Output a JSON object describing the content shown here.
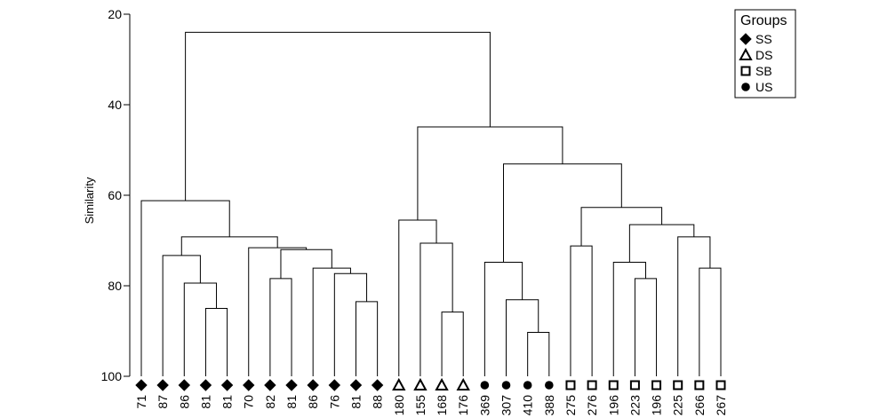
{
  "chart_data": {
    "type": "dendrogram",
    "ylabel": "Similarity",
    "ylim": [
      20,
      100
    ],
    "yticks": [
      20,
      40,
      60,
      80,
      100
    ],
    "leaves": [
      {
        "label": "71",
        "group": "SS"
      },
      {
        "label": "87",
        "group": "SS"
      },
      {
        "label": "86",
        "group": "SS"
      },
      {
        "label": "81",
        "group": "SS"
      },
      {
        "label": "81",
        "group": "SS"
      },
      {
        "label": "70",
        "group": "SS"
      },
      {
        "label": "82",
        "group": "SS"
      },
      {
        "label": "81",
        "group": "SS"
      },
      {
        "label": "86",
        "group": "SS"
      },
      {
        "label": "76",
        "group": "SS"
      },
      {
        "label": "81",
        "group": "SS"
      },
      {
        "label": "88",
        "group": "SS"
      },
      {
        "label": "180",
        "group": "DS"
      },
      {
        "label": "155",
        "group": "DS"
      },
      {
        "label": "168",
        "group": "DS"
      },
      {
        "label": "176",
        "group": "DS"
      },
      {
        "label": "369",
        "group": "US"
      },
      {
        "label": "307",
        "group": "US"
      },
      {
        "label": "410",
        "group": "US"
      },
      {
        "label": "388",
        "group": "US"
      },
      {
        "label": "275",
        "group": "SB"
      },
      {
        "label": "276",
        "group": "SB"
      },
      {
        "label": "196",
        "group": "SB"
      },
      {
        "label": "223",
        "group": "SB"
      },
      {
        "label": "196",
        "group": "SB"
      },
      {
        "label": "225",
        "group": "SB"
      },
      {
        "label": "266",
        "group": "SB"
      },
      {
        "label": "267",
        "group": "SB"
      }
    ],
    "merges": [
      {
        "id": "a",
        "left": 3,
        "right": 4,
        "similarity": 85
      },
      {
        "id": "b",
        "left": 2,
        "right": "a",
        "similarity": 79.4
      },
      {
        "id": "c",
        "left": 1,
        "right": "b",
        "similarity": 73.3
      },
      {
        "id": "d",
        "left": 10,
        "right": 11,
        "similarity": 83.5
      },
      {
        "id": "e",
        "left": 9,
        "right": "d",
        "similarity": 77.3
      },
      {
        "id": "f",
        "left": 8,
        "right": "e",
        "similarity": 76.1
      },
      {
        "id": "g",
        "left": 6,
        "right": 7,
        "similarity": 78.4
      },
      {
        "id": "h",
        "left": "g",
        "right": "f",
        "similarity": 72
      },
      {
        "id": "i",
        "left": 5,
        "right": "h",
        "similarity": 71.6
      },
      {
        "id": "j",
        "left": "c",
        "right": "i",
        "similarity": 69.2
      },
      {
        "id": "k",
        "left": 0,
        "right": "j",
        "similarity": 61.2
      },
      {
        "id": "l",
        "left": 14,
        "right": 15,
        "similarity": 85.8
      },
      {
        "id": "m",
        "left": 13,
        "right": "l",
        "similarity": 70.6
      },
      {
        "id": "n",
        "left": 12,
        "right": "m",
        "similarity": 65.5
      },
      {
        "id": "o",
        "left": 18,
        "right": 19,
        "similarity": 90.3
      },
      {
        "id": "p",
        "left": 17,
        "right": "o",
        "similarity": 83.1
      },
      {
        "id": "q",
        "left": 16,
        "right": "p",
        "similarity": 74.8
      },
      {
        "id": "r",
        "left": 20,
        "right": 21,
        "similarity": 71.2
      },
      {
        "id": "s",
        "left": 23,
        "right": 24,
        "similarity": 78.4
      },
      {
        "id": "t",
        "left": 22,
        "right": "s",
        "similarity": 74.8
      },
      {
        "id": "u",
        "left": 26,
        "right": 27,
        "similarity": 76.1
      },
      {
        "id": "v",
        "left": 25,
        "right": "u",
        "similarity": 69.2
      },
      {
        "id": "w",
        "left": "t",
        "right": "v",
        "similarity": 66.5
      },
      {
        "id": "x",
        "left": "r",
        "right": "w",
        "similarity": 62.7
      },
      {
        "id": "y",
        "left": "q",
        "right": "x",
        "similarity": 53.1
      },
      {
        "id": "z",
        "left": "n",
        "right": "y",
        "similarity": 44.9
      },
      {
        "id": "root",
        "left": "k",
        "right": "z",
        "similarity": 24
      }
    ],
    "legend": {
      "title": "Groups",
      "position": "top-right",
      "entries": [
        {
          "name": "SS",
          "marker": "diamond-filled"
        },
        {
          "name": "DS",
          "marker": "triangle-open"
        },
        {
          "name": "SB",
          "marker": "square-open"
        },
        {
          "name": "US",
          "marker": "circle-filled"
        }
      ]
    }
  }
}
